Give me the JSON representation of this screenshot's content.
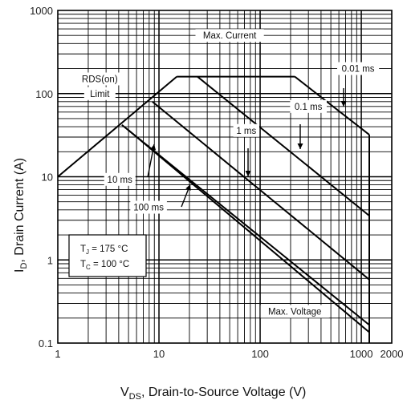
{
  "chart_data": {
    "type": "line",
    "x_scale": "log",
    "y_scale": "log",
    "xlim": [
      1,
      2000
    ],
    "ylim": [
      0.1,
      1000
    ],
    "grid": true,
    "x_ticks": [
      {
        "value": 1,
        "label": "1"
      },
      {
        "value": 10,
        "label": "10"
      },
      {
        "value": 100,
        "label": "100"
      },
      {
        "value": 1000,
        "label": "1000"
      },
      {
        "value": 2000,
        "label": "2000"
      }
    ],
    "y_ticks": [
      {
        "value": 0.1,
        "label": "0.1"
      },
      {
        "value": 1,
        "label": "1"
      },
      {
        "value": 10,
        "label": "10"
      },
      {
        "value": 100,
        "label": "100"
      },
      {
        "value": 1000,
        "label": "1000"
      }
    ],
    "xlabel": {
      "main": "V",
      "sub": "DS",
      "rest": ", Drain-to-Source Voltage (V)"
    },
    "ylabel": {
      "main": "I",
      "sub": "D",
      "rest": ", Drain Current (A)"
    },
    "conditions": {
      "tj": {
        "main": "T",
        "sub": "J",
        "rest": " = 175 °C"
      },
      "tc": {
        "main": "T",
        "sub": "C",
        "rest": " = 100 °C"
      }
    },
    "series": [
      {
        "name": "RDS(on) Limit",
        "points": [
          [
            1,
            10
          ],
          [
            15,
            160
          ]
        ]
      },
      {
        "name": "Max. Current",
        "points": [
          [
            15,
            160
          ],
          [
            220,
            160
          ]
        ]
      },
      {
        "name": "0.01 ms",
        "points": [
          [
            220,
            160
          ],
          [
            1200,
            32
          ]
        ]
      },
      {
        "name": "0.1 ms",
        "points": [
          [
            24,
            160
          ],
          [
            1200,
            3.4
          ]
        ]
      },
      {
        "name": "1 ms",
        "points": [
          [
            8.6,
            80
          ],
          [
            1200,
            0.58
          ]
        ]
      },
      {
        "name": "10 ms",
        "points": [
          [
            4.3,
            42
          ],
          [
            1200,
            0.165
          ]
        ]
      },
      {
        "name": "100 ms",
        "points": [
          [
            4.9,
            37
          ],
          [
            1200,
            0.135
          ]
        ]
      },
      {
        "name": "Max. Voltage",
        "points": [
          [
            1200,
            32
          ],
          [
            1200,
            0.1
          ]
        ]
      }
    ],
    "annotations": [
      {
        "text": "RDS(on)",
        "x": 2.6,
        "y": 150
      },
      {
        "text": "Limit",
        "x": 2.6,
        "y": 100
      },
      {
        "text": "Max. Current",
        "x": 50,
        "y": 500
      },
      {
        "text": "0.01 ms",
        "x": 930,
        "y": 200
      },
      {
        "text": "0.1 ms",
        "x": 300,
        "y": 70
      },
      {
        "text": "1 ms",
        "x": 73,
        "y": 36
      },
      {
        "text": "10 ms",
        "x": 4.1,
        "y": 9.3
      },
      {
        "text": "100 ms",
        "x": 7.9,
        "y": 4.3
      },
      {
        "text": "Max. Voltage",
        "x": 220,
        "y": 0.24
      }
    ]
  }
}
